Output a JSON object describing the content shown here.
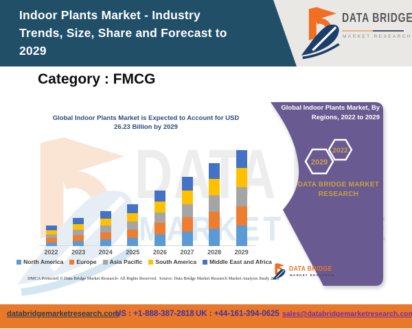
{
  "header": {
    "title_lines": [
      "Indoor Plants Market - Industry",
      "Trends, Size, Share and Forecast to",
      "2029"
    ],
    "logo": {
      "name": "DATA BRIDGE",
      "subtitle": "MARKET RESEARCH"
    }
  },
  "category_heading": "Category : FMCG",
  "chart_data": {
    "type": "bar",
    "stacked": true,
    "title": "Global Indoor Plants Market is Expected to Account for USD 26.23 Billion by 2029",
    "title_lines": [
      "Global Indoor Plants Market is Expected to Account for USD",
      "26.23 Billion by 2029"
    ],
    "categories": [
      "2022",
      "2023",
      "2024",
      "2025",
      "2026",
      "2027",
      "2028",
      "2029"
    ],
    "series": [
      {
        "name": "North America",
        "color": "#5B9BD5",
        "values": [
          0.95,
          1.35,
          1.8,
          2.2,
          3.1,
          3.9,
          4.7,
          5.6
        ]
      },
      {
        "name": "Europe",
        "color": "#ED7D31",
        "values": [
          1.3,
          1.7,
          2.0,
          2.4,
          3.2,
          3.9,
          4.7,
          5.3
        ]
      },
      {
        "name": "Asia Pacific",
        "color": "#A5A5A5",
        "values": [
          0.95,
          1.4,
          1.8,
          2.2,
          2.9,
          3.6,
          4.4,
          5.2
        ]
      },
      {
        "name": "South America",
        "color": "#FFC000",
        "values": [
          1.1,
          1.55,
          1.9,
          2.3,
          3.0,
          3.8,
          4.5,
          5.2
        ]
      },
      {
        "name": "Middle East and Africa",
        "color": "#4472C4",
        "values": [
          1.3,
          1.7,
          2.0,
          2.3,
          3.0,
          3.7,
          4.4,
          4.9
        ]
      }
    ],
    "totals_usd_billion": [
      5.6,
      7.7,
      9.5,
      11.4,
      15.2,
      18.9,
      22.7,
      26.23
    ],
    "ylim": [
      0,
      26.5
    ],
    "grid": false,
    "legend_position": "bottom"
  },
  "notes": {
    "dmca": "DMCA Protected © Data Bridge Market Research- All Rights Reserved.",
    "source": "Source: Data Bridge Market Research Market Analysis Study 2022"
  },
  "side_panel": {
    "title_lines": [
      "Global Indoor Plants Market, By",
      "Regions, 2022 to 2029"
    ],
    "hexagon_back": "2022",
    "hexagon_front": "2029",
    "brand_lines": [
      "DATA BRIDGE MARKET",
      "RESEARCH"
    ],
    "mini_logo": {
      "name": "DATA BRIDGE",
      "subtitle": "MARKET RESEARCH"
    }
  },
  "watermark": {
    "row1": "DATA BRI",
    "row2": "MARKET RESE"
  },
  "footer": {
    "website": "databridgemarketresearch.com",
    "us_phone": "US : +1-888-387-2818",
    "uk_phone": "UK : +44-161-394-0625",
    "email": "sales@databridgemarketresearch.com"
  },
  "colors": {
    "header_navy": "#214F68",
    "header_gray": "#EAE8E5",
    "panel_purple": "#695A92",
    "footer_orange": "#E8782A",
    "gold_accent": "#C9A13E",
    "logo_orange": "#F06F23",
    "logo_navy": "#1C3E6B"
  }
}
